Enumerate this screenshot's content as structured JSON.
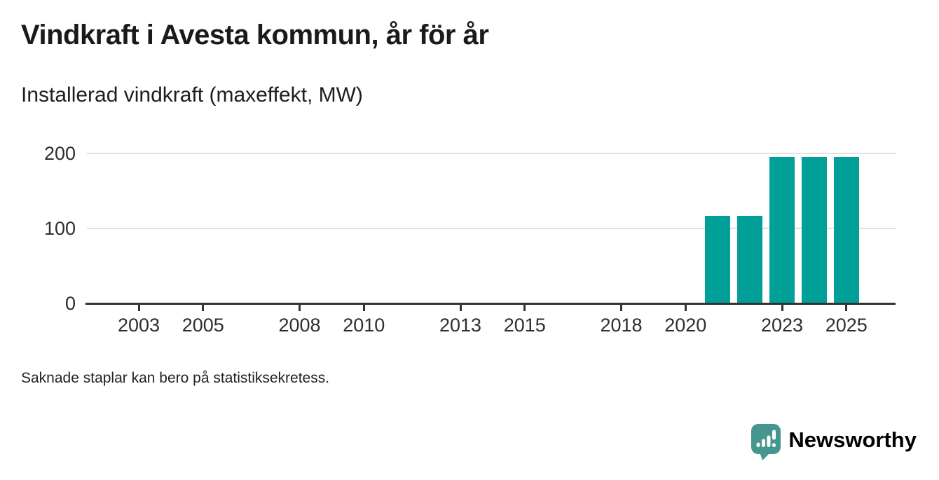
{
  "header": {
    "title": "Vindkraft i Avesta kommun, år för år",
    "subtitle": "Installerad vindkraft (maxeffekt, MW)"
  },
  "footnote": "Saknade staplar kan bero på statistiksekretess.",
  "branding": {
    "name": "Newsworthy",
    "logo_icon": "speech-bubble-bar-chart-icon",
    "color": "#45968f"
  },
  "chart_data": {
    "type": "bar",
    "title": "Vindkraft i Avesta kommun, år för år",
    "subtitle": "Installerad vindkraft (maxeffekt, MW)",
    "unit": "MW",
    "x": [
      2021,
      2022,
      2023,
      2024,
      2025
    ],
    "values": [
      117,
      117,
      195,
      195,
      195
    ],
    "xticks": [
      2003,
      2005,
      2008,
      2010,
      2013,
      2015,
      2018,
      2020,
      2023,
      2025
    ],
    "yticks": [
      0,
      100,
      200
    ],
    "ylim": [
      0,
      200
    ],
    "xlim": [
      2001.5,
      2026.5
    ],
    "grid": true,
    "legend": "none",
    "bar_color": "#00a099",
    "axis_color": "#333333",
    "grid_color": "#e0e0e0"
  }
}
